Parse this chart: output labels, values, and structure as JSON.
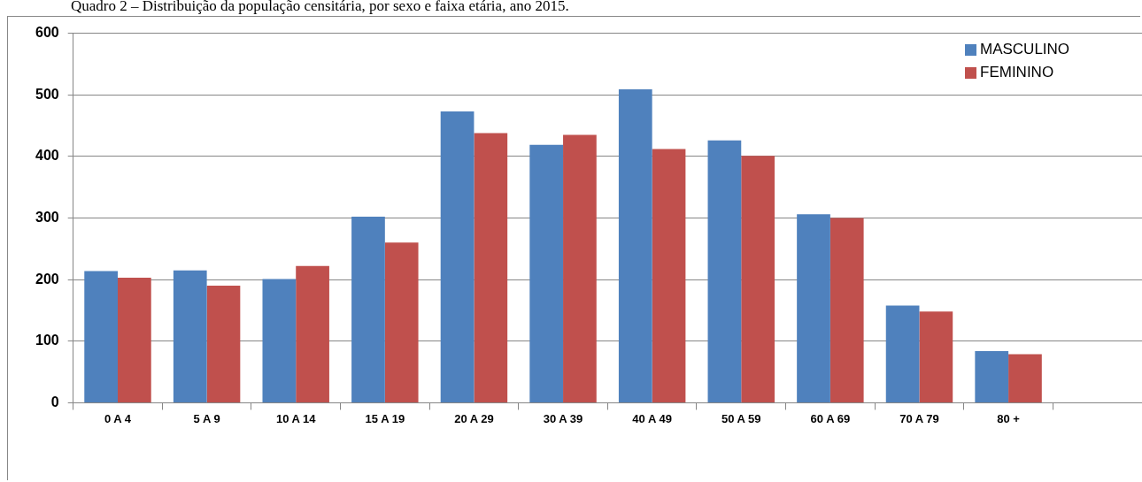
{
  "chart_data": {
    "type": "bar",
    "title": "Quadro 2 – Distribuição da população censitária, por sexo e faixa etária, ano 2015.",
    "categories": [
      "0 A 4",
      "5 A 9",
      "10 A 14",
      "15 A 19",
      "20 A 29",
      "30 A 39",
      "40 A 49",
      "50 A 59",
      "60 A 69",
      "70 A 79",
      "80 +",
      null
    ],
    "series": [
      {
        "name": "MASCULINO",
        "color": "#4f81bd",
        "values": [
          214,
          215,
          201,
          302,
          473,
          419,
          509,
          426,
          306,
          158,
          84,
          null
        ]
      },
      {
        "name": "FEMININO",
        "color": "#c0504d",
        "values": [
          203,
          190,
          222,
          260,
          438,
          435,
          412,
          401,
          300,
          148,
          79,
          null
        ]
      }
    ],
    "ylim": [
      0,
      600
    ],
    "yticks": [
      0,
      100,
      200,
      300,
      400,
      500,
      600
    ],
    "grid": "y",
    "legend": "top right"
  }
}
